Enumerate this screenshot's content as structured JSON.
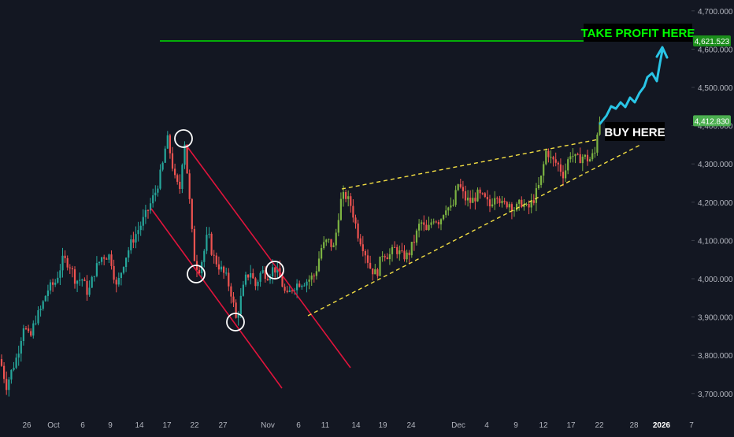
{
  "chart_data": {
    "type": "candlestick",
    "price_axis": {
      "ticks": [
        "3,700.000",
        "3,800.000",
        "3,900.000",
        "4,000.000",
        "4,100.000",
        "4,200.000",
        "4,300.000",
        "4,400.000",
        "4,500.000",
        "4,600.000",
        "4,700.000"
      ],
      "tick_values": [
        3700,
        3800,
        3900,
        4000,
        4100,
        4200,
        4300,
        4400,
        4500,
        4600,
        4700
      ],
      "range": [
        3655,
        4720
      ]
    },
    "time_axis": {
      "ticks": [
        "26",
        "Oct",
        "6",
        "9",
        "14",
        "17",
        "22",
        "27",
        "Nov",
        "6",
        "11",
        "14",
        "19",
        "24",
        "Dec",
        "4",
        "9",
        "12",
        "17",
        "22",
        "28",
        "2026",
        "7"
      ],
      "bold": [
        "2026"
      ]
    },
    "candles": [],
    "labels": {
      "current_price": "4,412.830",
      "take_profit_price": "4,621.523",
      "take_profit_text": "TAKE PROFIT HERE",
      "buy_text": "BUY HERE"
    },
    "take_profit_level": 4621.523,
    "current_level": 4412.83,
    "colors": {
      "background": "#131722",
      "up": "#26a69a",
      "up_bright": "#7cb342",
      "down": "#ef5350",
      "tp_line": "#00e000",
      "tp_text": "#00ff00",
      "channel": "#e0143c",
      "wedge": "#f5e043",
      "projection": "#29c5e6",
      "circle": "#ffffff",
      "grid": "#1e222d",
      "axis_text": "#b2b5be"
    }
  }
}
